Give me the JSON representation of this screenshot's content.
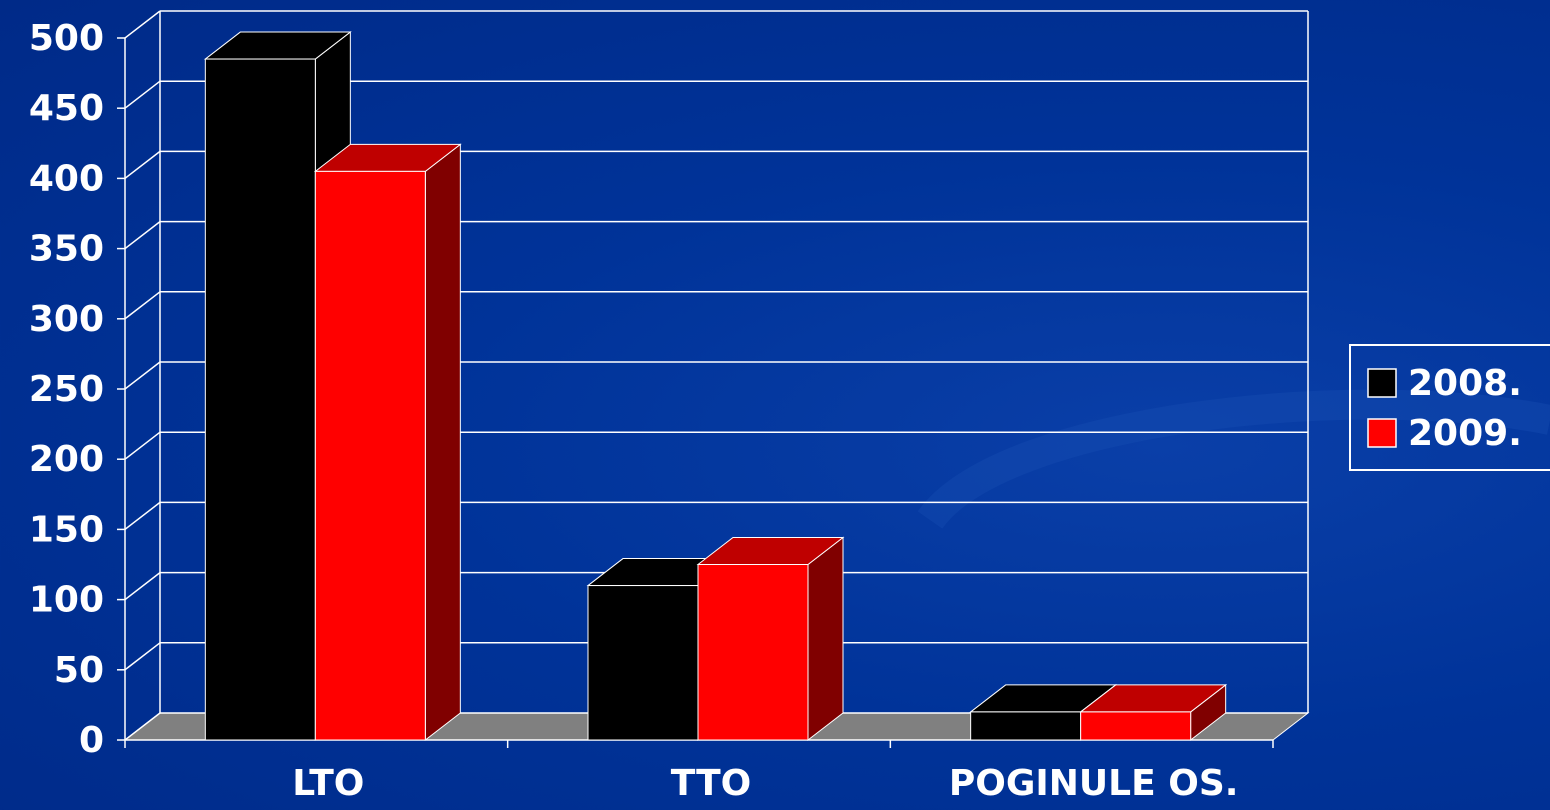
{
  "chart_data": {
    "type": "bar3d",
    "categories": [
      "LTO",
      "TTO",
      "POGINULE OS."
    ],
    "series": [
      {
        "name": "2008.",
        "color": "#000000",
        "values": [
          485,
          110,
          20
        ]
      },
      {
        "name": "2009.",
        "color": "#ff0000",
        "values": [
          405,
          125,
          20
        ]
      }
    ],
    "ylim": [
      0,
      500
    ],
    "yticks": [
      0,
      50,
      100,
      150,
      200,
      250,
      300,
      350,
      400,
      450,
      500
    ],
    "grid": true,
    "legend": "right"
  }
}
